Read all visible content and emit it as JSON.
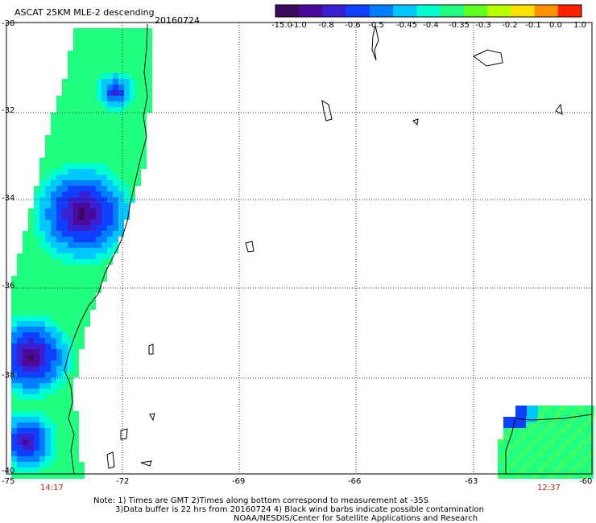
{
  "title": "ASCAT 25KM MLE-2 descending",
  "date": "20160724",
  "colorbar": {
    "labels": [
      "-15.0",
      "-1.0",
      "-0.8",
      "-0.6",
      "-0.5",
      "-0.45",
      "-0.4",
      "-0.35",
      "-0.3",
      "-0.2",
      "-0.1",
      "0.0",
      "1.0"
    ],
    "colors": [
      "#3a0a5c",
      "#4b0a9a",
      "#3a20d0",
      "#1040ff",
      "#0080ff",
      "#00c8ff",
      "#00ffd0",
      "#20ff80",
      "#60ff20",
      "#b8ff00",
      "#ffe000",
      "#ff9000",
      "#ff2000"
    ]
  },
  "axes": {
    "lat_labels": [
      "-30",
      "-32",
      "-34",
      "-36",
      "-38",
      "-40"
    ],
    "lon_labels": [
      "-75",
      "-72",
      "-69",
      "-66",
      "-63",
      "-60"
    ]
  },
  "times": {
    "left": "14:17",
    "right": "12:37"
  },
  "notes": [
    "Note: 1) Times are GMT 2)Times along bottom correspond to measurement at -35S",
    "3)Data buffer is 22 hrs from 20160724 4) Black wind barbs indicate possible contamination",
    "NOAA/NESDIS/Center for Satellite Applications and Research"
  ]
}
